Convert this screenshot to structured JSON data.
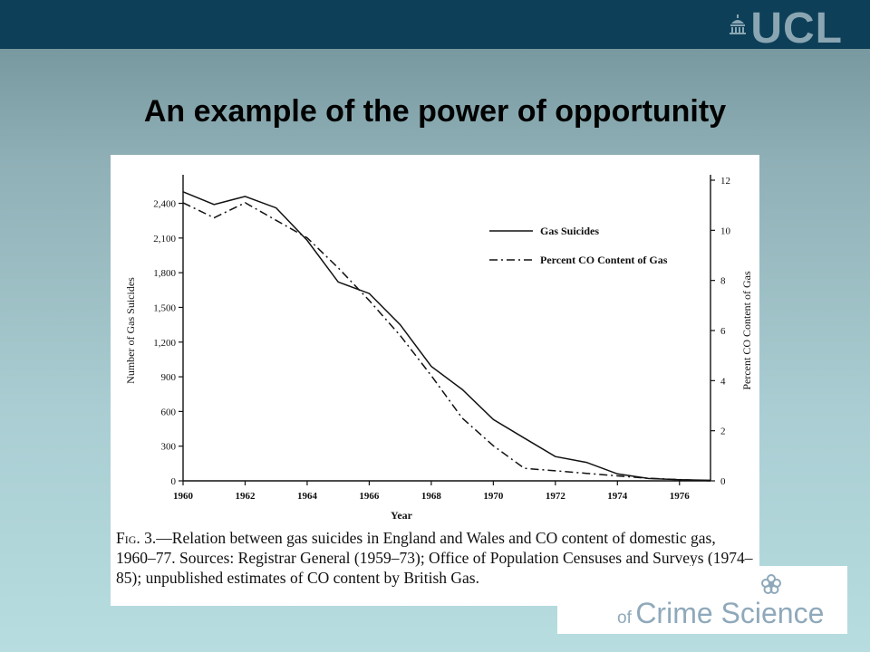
{
  "header": {
    "logo_text": "UCL",
    "brand_color": "#0d3f58"
  },
  "slide": {
    "title": "An example of the power of opportunity"
  },
  "caption": {
    "fig_label": "Fig. 3.",
    "text": "—Relation between gas suicides in England and Wales and CO content of domestic gas, 1960–77. Sources: Registrar General (1959–73); Office of Population Censuses and Surveys (1974–85); unpublished estimates of CO content by British Gas."
  },
  "footer_logo": {
    "of_text": "of",
    "name_text": "Crime Science",
    "icon": "flower-icon"
  },
  "chart_data": {
    "type": "line",
    "title": "",
    "xlabel": "Year",
    "ylabel": "Number of Gas Suicides",
    "y2label": "Percent CO Content of Gas",
    "x": [
      1960,
      1961,
      1962,
      1963,
      1964,
      1965,
      1966,
      1967,
      1968,
      1969,
      1970,
      1971,
      1972,
      1973,
      1974,
      1975,
      1976,
      1977
    ],
    "x_ticks": [
      "1960",
      "1962",
      "1964",
      "1966",
      "1968",
      "1970",
      "1972",
      "1974",
      "1976"
    ],
    "y_ticks": [
      "0",
      "300",
      "600",
      "900",
      "1,200",
      "1,500",
      "1,800",
      "2,100",
      "2,400"
    ],
    "y2_ticks": [
      "0",
      "2",
      "4",
      "6",
      "8",
      "10",
      "12"
    ],
    "xlim": [
      1960,
      1977
    ],
    "ylim": [
      0,
      2600
    ],
    "y2lim": [
      0,
      12
    ],
    "legend_position": "top-right",
    "series": [
      {
        "name": "Gas Suicides",
        "axis": "left",
        "style": "solid",
        "values": [
          2500,
          2390,
          2460,
          2360,
          2080,
          1720,
          1620,
          1350,
          990,
          790,
          530,
          370,
          210,
          160,
          60,
          20,
          10,
          5
        ]
      },
      {
        "name": "Percent CO Content of Gas",
        "axis": "right",
        "style": "dash-dot",
        "values": [
          11.1,
          10.5,
          11.1,
          10.4,
          9.7,
          8.5,
          7.2,
          5.8,
          4.2,
          2.5,
          1.4,
          0.5,
          0.4,
          0.3,
          0.2,
          0.1,
          0.05,
          0
        ]
      }
    ]
  }
}
